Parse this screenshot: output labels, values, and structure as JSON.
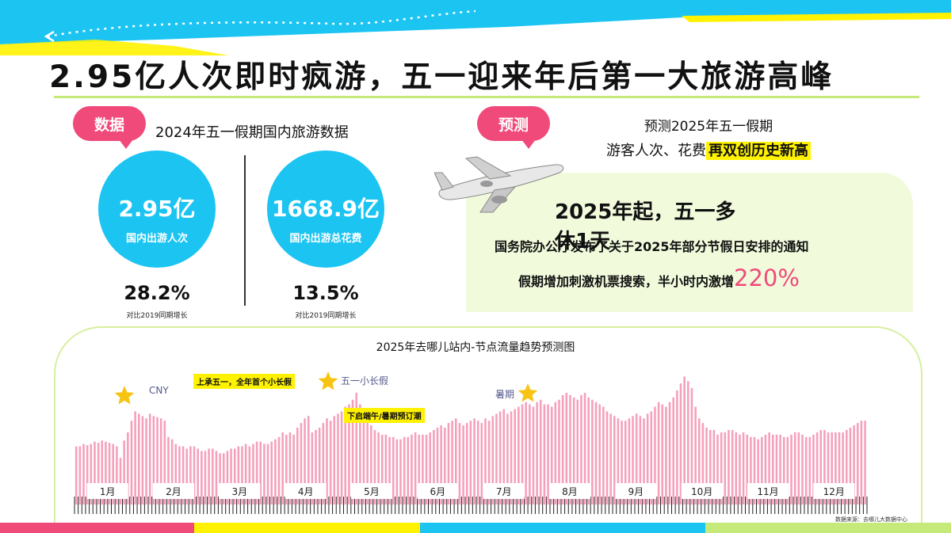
{
  "headline": "2.95亿人次即时疯游，五一迎来年后第一大旅游高峰",
  "left_section": {
    "tag": "数据",
    "title": "2024年五一假期国内旅游数据",
    "stats": [
      {
        "value": "2.95亿",
        "label": "国内出游人次",
        "growth": "28.2%",
        "growth_note": "对比2019同期增长"
      },
      {
        "value": "1668.9亿",
        "label": "国内出游总花费",
        "growth": "13.5%",
        "growth_note": "对比2019同期增长"
      }
    ]
  },
  "right_section": {
    "tag": "预测",
    "title_line1": "预测2025年五一假期",
    "title_line2_prefix": "游客人次、花费",
    "title_line2_highlight": "再双创历史新高",
    "headline": "2025年起，五一多休1天",
    "line1": "国务院办公厅发布了关于2025年部分节假日安排的通知",
    "line2_prefix": "假期增加刺激机票搜索，半小时内激增",
    "line2_value": "220%"
  },
  "colors": {
    "pink": "#f04a7a",
    "cyan": "#1cc4f2",
    "yellow": "#fff200",
    "lime": "#c6ea7a",
    "bar": "#f5a0bb"
  },
  "chart_data": {
    "type": "bar",
    "title": "2025年去哪儿站内-节点流量趋势预测图",
    "months": [
      "1月",
      "2月",
      "3月",
      "4月",
      "5月",
      "6月",
      "7月",
      "8月",
      "9月",
      "10月",
      "11月",
      "12月"
    ],
    "annotations": {
      "cny": "CNY",
      "mayday": "五一小长假",
      "summer": "暑期",
      "box1": "上承五一，全年首个小长假",
      "box2": "下启端午/暑期预订潮"
    },
    "values": [
      50,
      50,
      52,
      51,
      52,
      54,
      53,
      55,
      54,
      53,
      52,
      50,
      40,
      55,
      62,
      72,
      80,
      78,
      76,
      74,
      78,
      76,
      75,
      74,
      72,
      58,
      56,
      52,
      50,
      50,
      48,
      50,
      50,
      48,
      46,
      46,
      48,
      48,
      46,
      44,
      44,
      46,
      48,
      48,
      50,
      50,
      52,
      50,
      52,
      54,
      54,
      52,
      52,
      54,
      56,
      58,
      62,
      60,
      62,
      60,
      66,
      70,
      74,
      76,
      62,
      64,
      66,
      70,
      74,
      72,
      76,
      78,
      80,
      84,
      86,
      90,
      96,
      86,
      76,
      72,
      68,
      64,
      62,
      60,
      60,
      58,
      58,
      56,
      56,
      58,
      58,
      60,
      62,
      60,
      60,
      60,
      62,
      64,
      66,
      68,
      66,
      70,
      72,
      74,
      70,
      68,
      70,
      72,
      74,
      72,
      70,
      74,
      72,
      76,
      78,
      80,
      82,
      78,
      80,
      82,
      84,
      86,
      88,
      86,
      84,
      88,
      90,
      86,
      86,
      84,
      88,
      90,
      94,
      96,
      94,
      92,
      90,
      94,
      96,
      92,
      90,
      88,
      86,
      84,
      80,
      78,
      76,
      74,
      72,
      72,
      74,
      76,
      78,
      76,
      74,
      78,
      80,
      84,
      88,
      86,
      84,
      88,
      92,
      98,
      104,
      110,
      106,
      100,
      84,
      74,
      70,
      66,
      64,
      64,
      60,
      62,
      62,
      64,
      64,
      62,
      60,
      62,
      60,
      58,
      58,
      56,
      58,
      60,
      62,
      60,
      60,
      60,
      58,
      58,
      60,
      62,
      62,
      60,
      58,
      58,
      60,
      62,
      64,
      64,
      62,
      62,
      62,
      62,
      62,
      64,
      66,
      68,
      70,
      72,
      72
    ],
    "ylim": [
      0,
      115
    ]
  },
  "source": "数据来源：去哪儿大数据中心"
}
